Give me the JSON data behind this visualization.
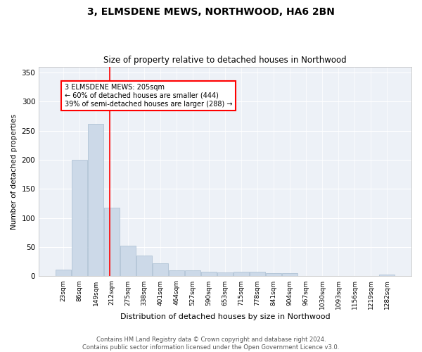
{
  "title": "3, ELMSDENE MEWS, NORTHWOOD, HA6 2BN",
  "subtitle": "Size of property relative to detached houses in Northwood",
  "xlabel": "Distribution of detached houses by size in Northwood",
  "ylabel": "Number of detached properties",
  "bar_color": "#ccd9e8",
  "bar_edge_color": "#a8bdd0",
  "background_color": "#edf1f7",
  "categories": [
    "23sqm",
    "86sqm",
    "149sqm",
    "212sqm",
    "275sqm",
    "338sqm",
    "401sqm",
    "464sqm",
    "527sqm",
    "590sqm",
    "653sqm",
    "715sqm",
    "778sqm",
    "841sqm",
    "904sqm",
    "967sqm",
    "1030sqm",
    "1093sqm",
    "1156sqm",
    "1219sqm",
    "1282sqm"
  ],
  "values": [
    11,
    200,
    262,
    118,
    53,
    35,
    22,
    10,
    10,
    8,
    7,
    8,
    8,
    5,
    5,
    0,
    0,
    0,
    0,
    0,
    3
  ],
  "ylim": [
    0,
    360
  ],
  "yticks": [
    0,
    50,
    100,
    150,
    200,
    250,
    300,
    350
  ],
  "red_line_x": 2.88,
  "annotation_lines": [
    "3 ELMSDENE MEWS: 205sqm",
    "← 60% of detached houses are smaller (444)",
    "39% of semi-detached houses are larger (288) →"
  ],
  "footer_line1": "Contains HM Land Registry data © Crown copyright and database right 2024.",
  "footer_line2": "Contains public sector information licensed under the Open Government Licence v3.0."
}
